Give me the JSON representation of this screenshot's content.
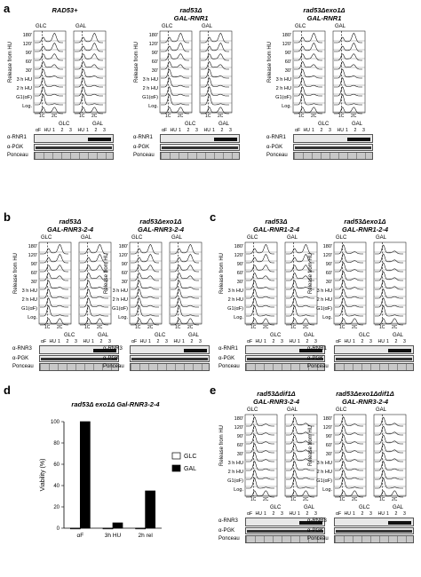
{
  "panels": {
    "a": "a",
    "b": "b",
    "c": "c",
    "d": "d",
    "e": "e"
  },
  "conditions": {
    "glc": "GLC",
    "gal": "GAL"
  },
  "flow": {
    "y_label": "Release from HU",
    "rows": [
      "180'",
      "120'",
      "90'",
      "60'",
      "30'",
      "3 h HU",
      "2 h HU",
      "G1(αF)",
      "Log."
    ],
    "c1": "1C",
    "c2": "2C"
  },
  "blot": {
    "lanes": [
      "αF",
      "HU",
      "1",
      "2",
      "3",
      "HU",
      "1",
      "2",
      "3"
    ],
    "lanes_short": [
      "αF",
      "HU",
      "1",
      "2",
      "3",
      "HU",
      "1",
      "2",
      "3"
    ],
    "rnr1": "α-RNR1",
    "rnr3": "α-RNR3",
    "pgk": "α-PGK",
    "ponceau": "Ponceau"
  },
  "strains": {
    "a1": [
      "RAD53+"
    ],
    "a2": [
      "rad53Δ",
      "GAL-RNR1"
    ],
    "a3": [
      "rad53Δexo1Δ",
      "GAL-RNR1"
    ],
    "b1": [
      "rad53Δ",
      "GAL-RNR3-2-4"
    ],
    "b2": [
      "rad53Δexo1Δ",
      "GAL-RNR3-2-4"
    ],
    "c1": [
      "rad53Δ",
      "GAL-RNR1-2-4"
    ],
    "c2": [
      "rad53Δexo1Δ",
      "GAL-RNR1-2-4"
    ],
    "e1": [
      "rad53Δdif1Δ",
      "GAL-RNR3-2-4"
    ],
    "e2": [
      "rad53Δexo1Δdif1Δ",
      "GAL-RNR3-2-4"
    ]
  },
  "chart_data": {
    "type": "bar",
    "title": "rad53Δ exo1Δ Gal-RNR3-2-4",
    "ylabel": "Viability (%)",
    "categories": [
      "αF",
      "3h HU",
      "2h rel"
    ],
    "series": [
      {
        "name": "GLC",
        "values": [
          0,
          0,
          0
        ],
        "color": "#ffffff"
      },
      {
        "name": "GAL",
        "values": [
          100,
          5,
          35
        ],
        "color": "#000000"
      }
    ],
    "yticks": [
      "0",
      "20",
      "40",
      "60",
      "80",
      "100"
    ],
    "ylim": [
      0,
      100
    ]
  }
}
